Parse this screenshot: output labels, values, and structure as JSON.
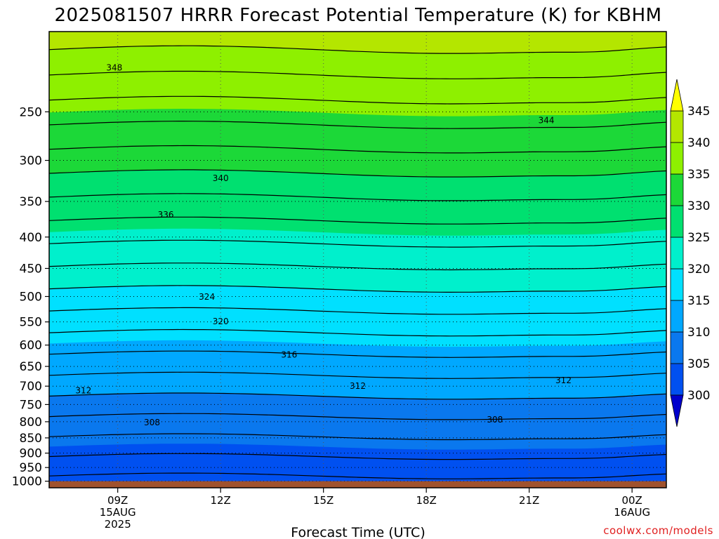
{
  "chart_data": {
    "type": "heatmap",
    "title": "2025081507 HRRR Forecast Potential Temperature (K) for KBHM",
    "xlabel": "Forecast Time (UTC)",
    "credit": "coolwx.com/models",
    "x_ticks": [
      {
        "hour": 9,
        "lines": [
          "09Z",
          "15AUG",
          "2025"
        ]
      },
      {
        "hour": 12,
        "lines": [
          "12Z"
        ]
      },
      {
        "hour": 15,
        "lines": [
          "15Z"
        ]
      },
      {
        "hour": 18,
        "lines": [
          "18Z"
        ]
      },
      {
        "hour": 21,
        "lines": [
          "21Z"
        ]
      },
      {
        "hour": 24,
        "lines": [
          "00Z",
          "16AUG"
        ]
      }
    ],
    "x_range_hours": [
      7,
      25
    ],
    "y_axis": {
      "label": "",
      "unit": "hPa",
      "scale": "log",
      "inverted": true,
      "range": [
        1025,
        185
      ]
    },
    "y_ticks": [
      250,
      300,
      350,
      400,
      450,
      500,
      550,
      600,
      650,
      700,
      750,
      800,
      850,
      900,
      950,
      1000
    ],
    "ground_level_hpa": 1000,
    "ground_color": "#a0522d",
    "colorbar": {
      "levels": [
        300,
        305,
        310,
        315,
        320,
        325,
        330,
        335,
        340,
        345
      ],
      "tick_labels": [
        "300",
        "305",
        "310",
        "315",
        "320",
        "325",
        "330",
        "335",
        "340",
        "345"
      ],
      "colors": [
        {
          "range": [
            295,
            300
          ],
          "color": "#0000cc"
        },
        {
          "range": [
            300,
            305
          ],
          "color": "#0050f0"
        },
        {
          "range": [
            305,
            310
          ],
          "color": "#0a78ee"
        },
        {
          "range": [
            310,
            315
          ],
          "color": "#00a8ff"
        },
        {
          "range": [
            315,
            320
          ],
          "color": "#00e0ff"
        },
        {
          "range": [
            320,
            325
          ],
          "color": "#00f0cc"
        },
        {
          "range": [
            325,
            330
          ],
          "color": "#00e070"
        },
        {
          "range": [
            330,
            335
          ],
          "color": "#1cd838"
        },
        {
          "range": [
            335,
            340
          ],
          "color": "#8ef000"
        },
        {
          "range": [
            340,
            345
          ],
          "color": "#b4e600"
        },
        {
          "range": [
            345,
            350
          ],
          "color": "#ffff00"
        }
      ],
      "extend": "both"
    },
    "contour_interval_k": 2,
    "contour_labels": [
      {
        "value": "348",
        "hour": 8.9,
        "hpa": 212
      },
      {
        "value": "344",
        "hour": 21.5,
        "hpa": 258
      },
      {
        "value": "340",
        "hour": 12.0,
        "hpa": 321
      },
      {
        "value": "336",
        "hour": 10.4,
        "hpa": 368
      },
      {
        "value": "324",
        "hour": 11.6,
        "hpa": 501
      },
      {
        "value": "320",
        "hour": 12.0,
        "hpa": 549
      },
      {
        "value": "316",
        "hour": 14.0,
        "hpa": 622
      },
      {
        "value": "312",
        "hour": 8.0,
        "hpa": 712
      },
      {
        "value": "312",
        "hour": 16.0,
        "hpa": 700
      },
      {
        "value": "312",
        "hour": 22.0,
        "hpa": 685
      },
      {
        "value": "308",
        "hour": 10.0,
        "hpa": 802
      },
      {
        "value": "308",
        "hour": 20.0,
        "hpa": 794
      }
    ]
  }
}
